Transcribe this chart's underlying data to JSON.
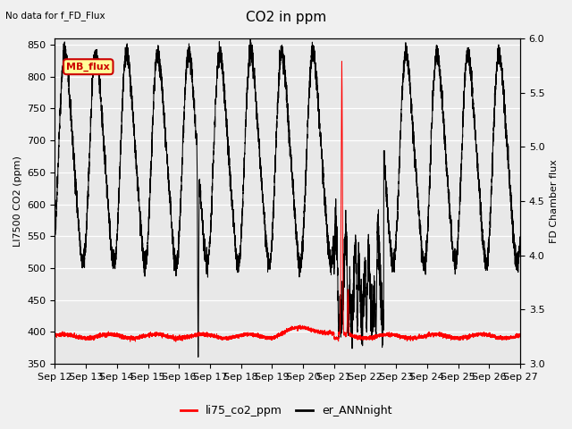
{
  "title": "CO2 in ppm",
  "top_left_text": "No data for f_FD_Flux",
  "ylabel_left": "LI7500 CO2 (ppm)",
  "ylabel_right": "FD Chamber flux",
  "ylim_left": [
    350,
    860
  ],
  "ylim_right": [
    3.0,
    6.0
  ],
  "yticks_left": [
    350,
    400,
    450,
    500,
    550,
    600,
    650,
    700,
    750,
    800,
    850
  ],
  "yticks_right": [
    3.0,
    3.5,
    4.0,
    4.5,
    5.0,
    5.5,
    6.0
  ],
  "xtick_labels": [
    "Sep 12",
    "Sep 13",
    "Sep 14",
    "Sep 15",
    "Sep 16",
    "Sep 17",
    "Sep 18",
    "Sep 19",
    "Sep 20",
    "Sep 21",
    "Sep 22",
    "Sep 23",
    "Sep 24",
    "Sep 25",
    "Sep 26",
    "Sep 27"
  ],
  "color_red": "#ff0000",
  "color_black": "#000000",
  "legend_label_red": "li75_co2_ppm",
  "legend_label_black": "er_ANNnight",
  "mb_flux_label": "MB_flux",
  "mb_flux_color": "#cc0000",
  "mb_flux_bg": "#ffff99",
  "plot_bg": "#e8e8e8",
  "fig_bg": "#f0f0f0",
  "grid_color": "#ffffff"
}
